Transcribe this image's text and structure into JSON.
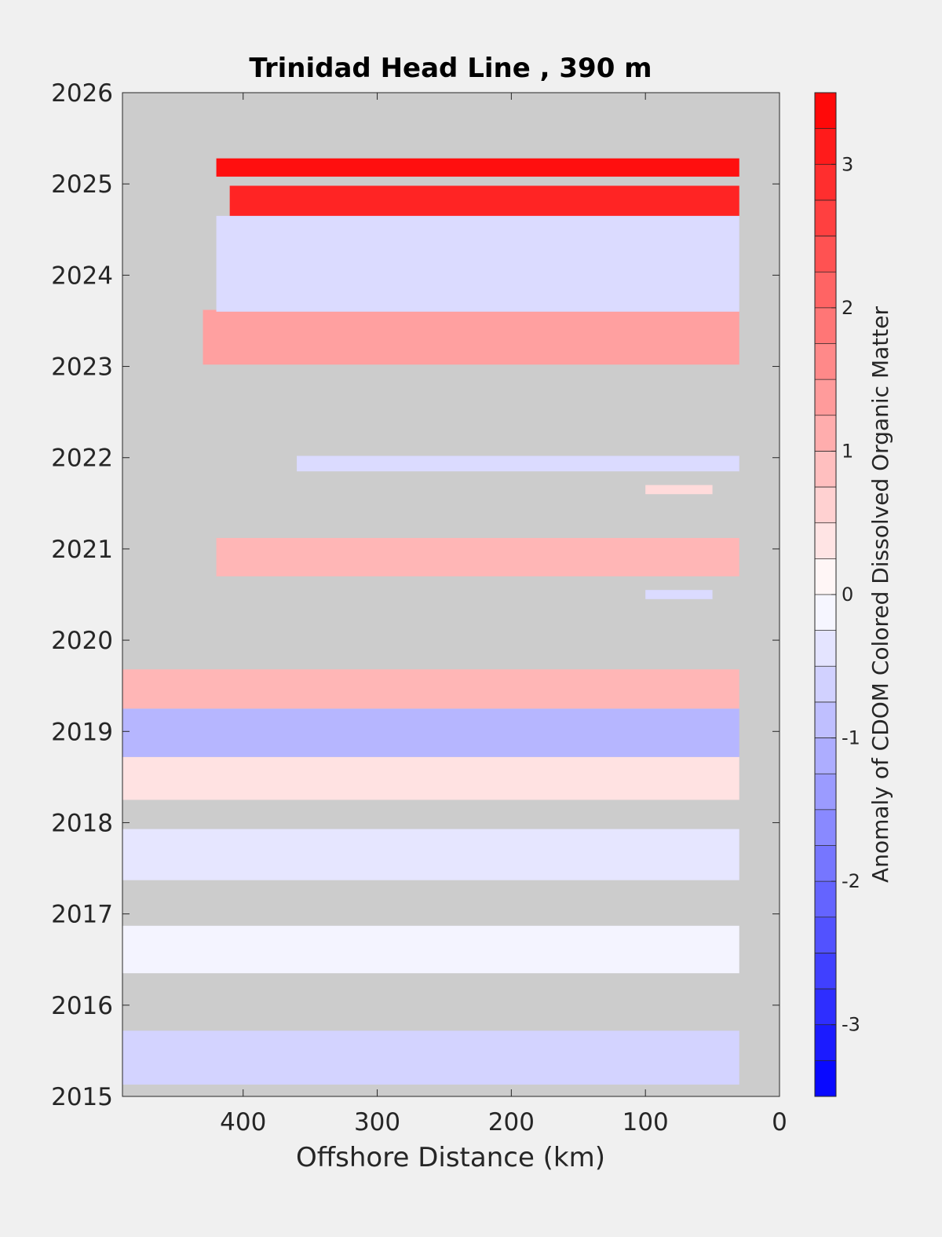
{
  "chart_data": {
    "type": "heatmap",
    "title": "Trinidad Head Line , 390 m",
    "xlabel": "Offshore Distance (km)",
    "ylabel": "",
    "colorbar_label": "Anomaly of CDOM Colored Dissolved Organic Matter",
    "xlim": [
      490,
      0
    ],
    "ylim": [
      2015,
      2026
    ],
    "x_reversed": true,
    "x_ticks": [
      400,
      300,
      200,
      100,
      0
    ],
    "y_ticks": [
      2015,
      2016,
      2017,
      2018,
      2019,
      2020,
      2021,
      2022,
      2023,
      2024,
      2025,
      2026
    ],
    "clim": [
      -3.5,
      3.5
    ],
    "colorbar_ticks": [
      3,
      2,
      1,
      0,
      -1,
      -2,
      -3
    ],
    "colormap": {
      "low": "#0000ff",
      "mid": "#ffffff",
      "high": "#ff0000",
      "nodata": "#cccccc"
    },
    "bands": [
      {
        "year_start": 2015.13,
        "year_end": 2015.72,
        "x_from": 490,
        "x_to": 30,
        "value": -0.6
      },
      {
        "year_start": 2016.35,
        "year_end": 2016.87,
        "x_from": 490,
        "x_to": 30,
        "value": -0.15
      },
      {
        "year_start": 2017.37,
        "year_end": 2017.93,
        "x_from": 490,
        "x_to": 30,
        "value": -0.35
      },
      {
        "year_start": 2018.25,
        "year_end": 2018.72,
        "x_from": 490,
        "x_to": 30,
        "value": 0.4
      },
      {
        "year_start": 2018.72,
        "year_end": 2019.25,
        "x_from": 490,
        "x_to": 30,
        "value": -1.0
      },
      {
        "year_start": 2019.25,
        "year_end": 2019.68,
        "x_from": 490,
        "x_to": 30,
        "value": 1.0
      },
      {
        "year_start": 2020.45,
        "year_end": 2020.55,
        "x_from": 100,
        "x_to": 50,
        "value": -0.5
      },
      {
        "year_start": 2020.7,
        "year_end": 2021.12,
        "x_from": 420,
        "x_to": 30,
        "value": 1.0
      },
      {
        "year_start": 2021.6,
        "year_end": 2021.7,
        "x_from": 100,
        "x_to": 50,
        "value": 0.5
      },
      {
        "year_start": 2021.85,
        "year_end": 2022.02,
        "x_from": 360,
        "x_to": 30,
        "value": -0.5
      },
      {
        "year_start": 2023.02,
        "year_end": 2023.62,
        "x_from": 430,
        "x_to": 30,
        "value": 1.3
      },
      {
        "year_start": 2023.6,
        "year_end": 2024.65,
        "x_from": 420,
        "x_to": 30,
        "value": -0.5
      },
      {
        "year_start": 2024.65,
        "year_end": 2024.98,
        "x_from": 410,
        "x_to": 30,
        "value": 3.0
      },
      {
        "year_start": 2025.08,
        "year_end": 2025.28,
        "x_from": 420,
        "x_to": 30,
        "value": 3.3
      }
    ]
  }
}
